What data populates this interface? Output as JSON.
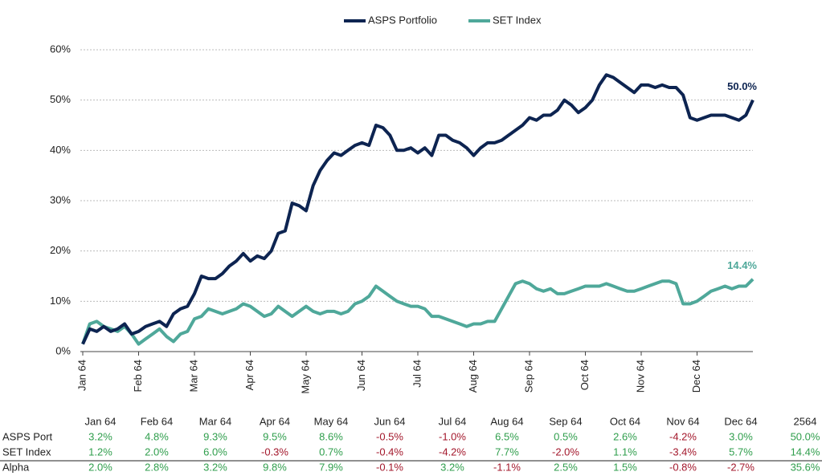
{
  "chart_data": {
    "type": "line",
    "categories": [
      "Jan 64",
      null,
      null,
      null,
      null,
      null,
      null,
      null,
      "Feb 64",
      null,
      null,
      null,
      null,
      null,
      null,
      null,
      "Mar 64",
      null,
      null,
      null,
      null,
      null,
      null,
      null,
      "Apr 64",
      null,
      null,
      null,
      null,
      null,
      null,
      null,
      "May 64",
      null,
      null,
      null,
      null,
      null,
      null,
      null,
      "Jun 64",
      null,
      null,
      null,
      null,
      null,
      null,
      null,
      "Jul 64",
      null,
      null,
      null,
      null,
      null,
      null,
      null,
      "Aug 64",
      null,
      null,
      null,
      null,
      null,
      null,
      null,
      "Sep 64",
      null,
      null,
      null,
      null,
      null,
      null,
      null,
      "Oct 64",
      null,
      null,
      null,
      null,
      null,
      null,
      null,
      "Nov 64",
      null,
      null,
      null,
      null,
      null,
      null,
      null,
      "Dec 64",
      null,
      null,
      null,
      null,
      null,
      null,
      null,
      null
    ],
    "series": [
      {
        "name": "ASPS Portfolio",
        "color": "#0d2451",
        "end_label": "50.0%",
        "values": [
          1.5,
          4.5,
          4,
          5,
          4,
          4.5,
          5.5,
          3.5,
          4,
          5,
          5.5,
          6,
          5,
          7.5,
          8.5,
          9,
          11.5,
          15,
          14.5,
          14.5,
          15.5,
          17,
          18,
          19.5,
          18,
          19,
          18.5,
          20,
          23.5,
          24,
          29.5,
          29,
          28,
          33,
          36,
          38,
          39.5,
          39,
          40,
          41,
          41.5,
          41,
          45,
          44.5,
          43,
          40,
          40,
          40.5,
          39.5,
          40.5,
          39,
          43,
          43,
          42,
          41.5,
          40.5,
          39,
          40.5,
          41.5,
          41.5,
          42,
          43,
          44,
          45,
          46.5,
          46,
          47,
          47,
          48,
          50,
          49,
          47.5,
          48.5,
          50,
          53,
          55,
          54.5,
          53.5,
          52.5,
          51.5,
          53,
          53,
          52.5,
          53,
          52.5,
          52.5,
          51,
          46.5,
          46,
          46.5,
          47,
          47,
          47,
          46.5,
          46,
          47,
          50
        ]
      },
      {
        "name": "SET Index",
        "color": "#4fa89a",
        "end_label": "14.4%",
        "values": [
          1.5,
          5.5,
          6,
          5,
          4.5,
          4,
          5,
          3.5,
          1.5,
          2.5,
          3.5,
          4.5,
          3,
          2,
          3.5,
          4,
          6.5,
          7,
          8.5,
          8,
          7.5,
          8,
          8.5,
          9.5,
          9,
          8,
          7,
          7.5,
          9,
          8,
          7,
          8,
          9,
          8,
          7.5,
          8,
          8,
          7.5,
          8,
          9.5,
          10,
          11,
          13,
          12,
          11,
          10,
          9.5,
          9,
          9,
          8.5,
          7,
          7,
          6.5,
          6,
          5.5,
          5,
          5.5,
          5.5,
          6,
          6,
          8.5,
          11,
          13.5,
          14,
          13.5,
          12.5,
          12,
          12.5,
          11.5,
          11.5,
          12,
          12.5,
          13,
          13,
          13,
          13.5,
          13,
          12.5,
          12,
          12,
          12.5,
          13,
          13.5,
          14,
          14,
          13.5,
          9.5,
          9.5,
          10,
          11,
          12,
          12.5,
          13,
          12.5,
          13,
          13,
          14.4
        ]
      }
    ],
    "ylim": [
      0,
      60
    ],
    "yticks": [
      {
        "value": 0,
        "label": "0%"
      },
      {
        "value": 10,
        "label": "10%"
      },
      {
        "value": 20,
        "label": "20%"
      },
      {
        "value": 30,
        "label": "30%"
      },
      {
        "value": 40,
        "label": "40%"
      },
      {
        "value": 50,
        "label": "50%"
      },
      {
        "value": 60,
        "label": "60%"
      }
    ],
    "grid": true,
    "legend": "top"
  },
  "table": {
    "columns": [
      "Jan 64",
      "Feb 64",
      "Mar 64",
      "Apr 64",
      "May 64",
      "Jun 64",
      "Jul 64",
      "Aug 64",
      "Sep 64",
      "Oct 64",
      "Nov 64",
      "Dec 64",
      "2564"
    ],
    "rows": [
      {
        "name": "ASPS Port",
        "cells": [
          "3.2%",
          "4.8%",
          "9.3%",
          "9.5%",
          "8.6%",
          "-0.5%",
          "-1.0%",
          "6.5%",
          "0.5%",
          "2.6%",
          "-4.2%",
          "3.0%",
          "50.0%"
        ]
      },
      {
        "name": "SET Index",
        "cells": [
          "1.2%",
          "2.0%",
          "6.0%",
          "-0.3%",
          "0.7%",
          "-0.4%",
          "-4.2%",
          "7.7%",
          "-2.0%",
          "1.1%",
          "-3.4%",
          "5.7%",
          "14.4%"
        ]
      },
      {
        "name": "Alpha",
        "cells": [
          "2.0%",
          "2.8%",
          "3.2%",
          "9.8%",
          "7.9%",
          "-0.1%",
          "3.2%",
          "-1.1%",
          "2.5%",
          "1.5%",
          "-0.8%",
          "-2.7%",
          "35.6%"
        ]
      }
    ]
  }
}
